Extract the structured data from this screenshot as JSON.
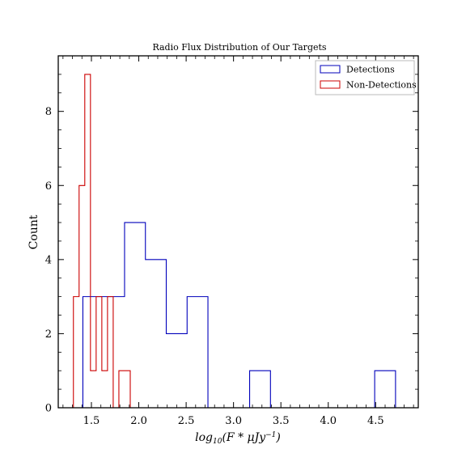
{
  "chart_data": {
    "type": "histogram",
    "title": "Radio Flux Distribution of Our Targets",
    "xlabel": "log10(F*μJy−1)",
    "xlabel_parts": {
      "base": "log",
      "sub": "10",
      "mid": "(F * μJy",
      "sup": "−1",
      "end": ")"
    },
    "ylabel": "Count",
    "xlim": [
      1.15,
      4.95
    ],
    "ylim": [
      0,
      9.5
    ],
    "xticks": [
      "1.5",
      "2.0",
      "2.5",
      "3.0",
      "3.5",
      "4.0",
      "4.5"
    ],
    "yticks": [
      "0",
      "2",
      "4",
      "6",
      "8"
    ],
    "legend_position": "top-right",
    "series": [
      {
        "name": "Detections",
        "color": "#0000bb",
        "edges": [
          1.41,
          1.63,
          1.85,
          2.07,
          2.29,
          2.51,
          2.73,
          2.95,
          3.17,
          3.39,
          3.61,
          3.83,
          4.05,
          4.27,
          4.49,
          4.71
        ],
        "counts": [
          3,
          3,
          5,
          4,
          2,
          3,
          0,
          0,
          1,
          0,
          0,
          0,
          0,
          0,
          1
        ]
      },
      {
        "name": "Non-Detections",
        "color": "#cc0000",
        "edges": [
          1.31,
          1.37,
          1.43,
          1.49,
          1.55,
          1.61,
          1.67,
          1.73,
          1.79,
          1.85,
          1.91
        ],
        "counts": [
          3,
          6,
          9,
          1,
          3,
          1,
          3,
          0,
          1,
          1
        ]
      }
    ]
  }
}
